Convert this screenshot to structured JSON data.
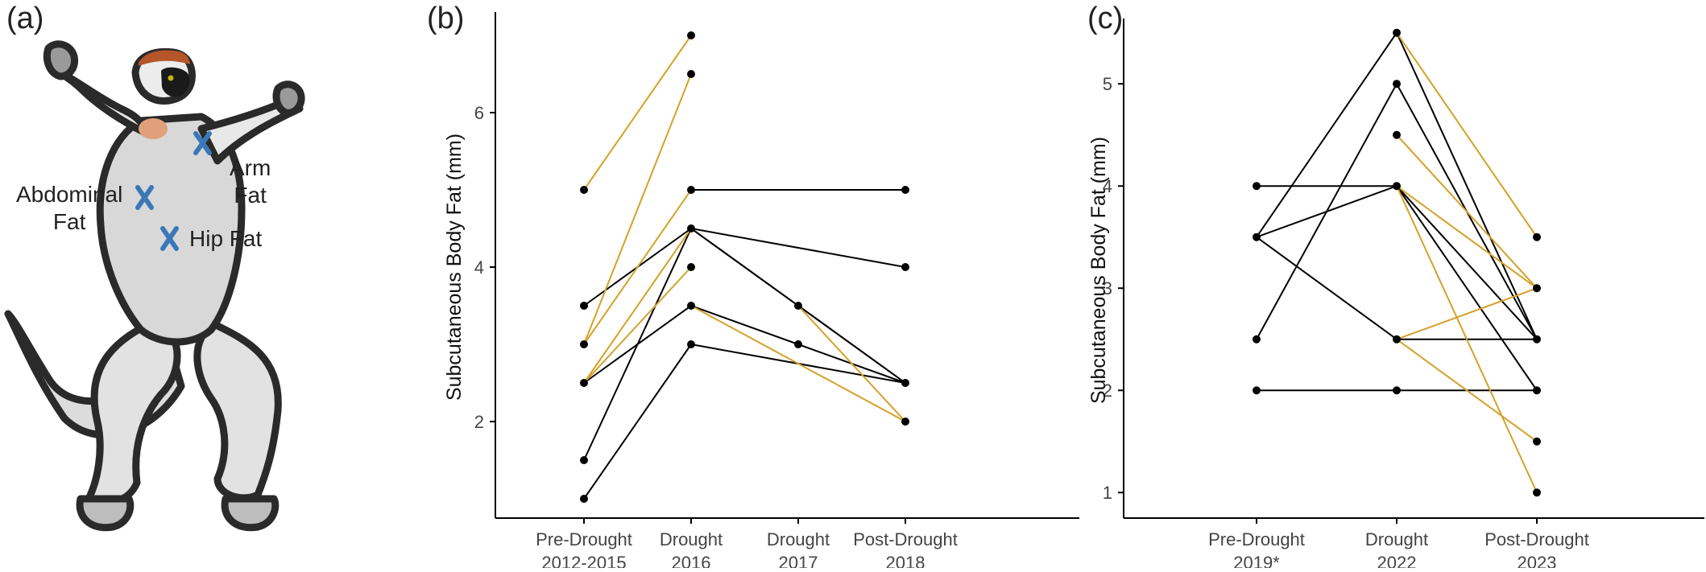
{
  "panels": {
    "a": {
      "letter": "(a)",
      "labels": {
        "abdominal": "Abdominal\nFat",
        "arm": "Arm\nFat",
        "hip": "Hip Fat"
      },
      "marker": "X"
    },
    "b": {
      "letter": "(b)"
    },
    "c": {
      "letter": "(c)"
    }
  },
  "colors": {
    "black": "#000000",
    "gold": "#D4A12A",
    "marker_blue": "#3A78B8",
    "crown": "#B5562A"
  },
  "chart_data": [
    {
      "id": "b",
      "type": "line",
      "ylabel": "Subcutaneous Body Fat (mm)",
      "xlabel": "",
      "categories": [
        "Pre-Drought\n2012-2015",
        "Drought\n2016",
        "Drought\n2017",
        "Post-Drought\n2018"
      ],
      "ylim": [
        0.75,
        7.25
      ],
      "yticks": [
        2,
        4,
        6
      ],
      "grid": false,
      "points": [
        {
          "x": 0,
          "y": 5.0
        },
        {
          "x": 0,
          "y": 3.5
        },
        {
          "x": 0,
          "y": 3.0
        },
        {
          "x": 0,
          "y": 2.5
        },
        {
          "x": 0,
          "y": 1.5
        },
        {
          "x": 0,
          "y": 1.0
        },
        {
          "x": 1,
          "y": 7.0
        },
        {
          "x": 1,
          "y": 6.5
        },
        {
          "x": 1,
          "y": 5.0
        },
        {
          "x": 1,
          "y": 4.5
        },
        {
          "x": 1,
          "y": 4.0
        },
        {
          "x": 1,
          "y": 3.5
        },
        {
          "x": 1,
          "y": 3.0
        },
        {
          "x": 2,
          "y": 3.5
        },
        {
          "x": 2,
          "y": 3.0
        },
        {
          "x": 3,
          "y": 5.0
        },
        {
          "x": 3,
          "y": 4.0
        },
        {
          "x": 3,
          "y": 2.5
        },
        {
          "x": 3,
          "y": 2.0
        }
      ],
      "segments": [
        {
          "from": [
            0,
            5.0
          ],
          "to": [
            1,
            7.0
          ],
          "color": "gold"
        },
        {
          "from": [
            0,
            3.0
          ],
          "to": [
            1,
            6.5
          ],
          "color": "gold"
        },
        {
          "from": [
            0,
            3.0
          ],
          "to": [
            1,
            5.0
          ],
          "color": "gold"
        },
        {
          "from": [
            0,
            2.5
          ],
          "to": [
            1,
            4.0
          ],
          "color": "gold"
        },
        {
          "from": [
            0,
            2.5
          ],
          "to": [
            1,
            4.5
          ],
          "color": "gold"
        },
        {
          "from": [
            0,
            3.5
          ],
          "to": [
            1,
            4.5
          ],
          "color": "black"
        },
        {
          "from": [
            0,
            1.5
          ],
          "to": [
            1,
            4.5
          ],
          "color": "black"
        },
        {
          "from": [
            0,
            2.5
          ],
          "to": [
            1,
            3.5
          ],
          "color": "black"
        },
        {
          "from": [
            0,
            1.0
          ],
          "to": [
            1,
            3.0
          ],
          "color": "black"
        },
        {
          "from": [
            1,
            5.0
          ],
          "to": [
            3,
            5.0
          ],
          "color": "black"
        },
        {
          "from": [
            1,
            4.5
          ],
          "to": [
            3,
            4.0
          ],
          "color": "black"
        },
        {
          "from": [
            1,
            4.5
          ],
          "to": [
            2,
            3.5
          ],
          "color": "black"
        },
        {
          "from": [
            1,
            4.5
          ],
          "to": [
            3,
            2.5
          ],
          "color": "black"
        },
        {
          "from": [
            1,
            3.5
          ],
          "to": [
            2,
            3.0
          ],
          "color": "black"
        },
        {
          "from": [
            2,
            3.5
          ],
          "to": [
            3,
            2.5
          ],
          "color": "black"
        },
        {
          "from": [
            2,
            3.0
          ],
          "to": [
            3,
            2.5
          ],
          "color": "black"
        },
        {
          "from": [
            1,
            3.0
          ],
          "to": [
            3,
            2.5
          ],
          "color": "black"
        },
        {
          "from": [
            2,
            3.5
          ],
          "to": [
            3,
            2.0
          ],
          "color": "gold"
        },
        {
          "from": [
            1,
            3.5
          ],
          "to": [
            3,
            2.0
          ],
          "color": "gold"
        }
      ]
    },
    {
      "id": "c",
      "type": "line",
      "ylabel": "Subcutaneous Body Fat (mm)",
      "xlabel": "",
      "categories": [
        "Pre-Drought\n2019*",
        "Drought\n2022",
        "Post-Drought\n2023"
      ],
      "ylim": [
        0.75,
        5.6
      ],
      "yticks": [
        1,
        2,
        3,
        4,
        5
      ],
      "grid": false,
      "points": [
        {
          "x": 0,
          "y": 4.0
        },
        {
          "x": 0,
          "y": 3.5
        },
        {
          "x": 0,
          "y": 2.5
        },
        {
          "x": 0,
          "y": 2.0
        },
        {
          "x": 1,
          "y": 5.5
        },
        {
          "x": 1,
          "y": 5.0
        },
        {
          "x": 1,
          "y": 4.5
        },
        {
          "x": 1,
          "y": 4.0
        },
        {
          "x": 1,
          "y": 2.5
        },
        {
          "x": 1,
          "y": 2.0
        },
        {
          "x": 2,
          "y": 3.5
        },
        {
          "x": 2,
          "y": 3.0
        },
        {
          "x": 2,
          "y": 2.5
        },
        {
          "x": 2,
          "y": 2.0
        },
        {
          "x": 2,
          "y": 1.5
        },
        {
          "x": 2,
          "y": 1.0
        }
      ],
      "segments": [
        {
          "from": [
            0,
            4.0
          ],
          "to": [
            1,
            4.0
          ],
          "color": "black"
        },
        {
          "from": [
            0,
            3.5
          ],
          "to": [
            1,
            5.5
          ],
          "color": "black"
        },
        {
          "from": [
            0,
            3.5
          ],
          "to": [
            1,
            4.0
          ],
          "color": "black"
        },
        {
          "from": [
            0,
            3.5
          ],
          "to": [
            1,
            2.5
          ],
          "color": "black"
        },
        {
          "from": [
            0,
            2.5
          ],
          "to": [
            1,
            5.0
          ],
          "color": "black"
        },
        {
          "from": [
            0,
            2.0
          ],
          "to": [
            1,
            2.0
          ],
          "color": "black"
        },
        {
          "from": [
            1,
            5.5
          ],
          "to": [
            2,
            3.5
          ],
          "color": "gold"
        },
        {
          "from": [
            1,
            5.5
          ],
          "to": [
            2,
            2.5
          ],
          "color": "black"
        },
        {
          "from": [
            1,
            5.0
          ],
          "to": [
            2,
            2.5
          ],
          "color": "black"
        },
        {
          "from": [
            1,
            4.5
          ],
          "to": [
            2,
            3.0
          ],
          "color": "gold"
        },
        {
          "from": [
            1,
            4.0
          ],
          "to": [
            2,
            3.0
          ],
          "color": "gold"
        },
        {
          "from": [
            1,
            4.0
          ],
          "to": [
            2,
            2.0
          ],
          "color": "black"
        },
        {
          "from": [
            1,
            4.0
          ],
          "to": [
            2,
            2.5
          ],
          "color": "black"
        },
        {
          "from": [
            1,
            4.0
          ],
          "to": [
            2,
            1.0
          ],
          "color": "gold"
        },
        {
          "from": [
            1,
            2.5
          ],
          "to": [
            2,
            3.0
          ],
          "color": "gold"
        },
        {
          "from": [
            1,
            2.5
          ],
          "to": [
            2,
            2.5
          ],
          "color": "black"
        },
        {
          "from": [
            1,
            2.5
          ],
          "to": [
            2,
            1.5
          ],
          "color": "gold"
        },
        {
          "from": [
            1,
            2.0
          ],
          "to": [
            2,
            2.0
          ],
          "color": "black"
        }
      ]
    }
  ]
}
